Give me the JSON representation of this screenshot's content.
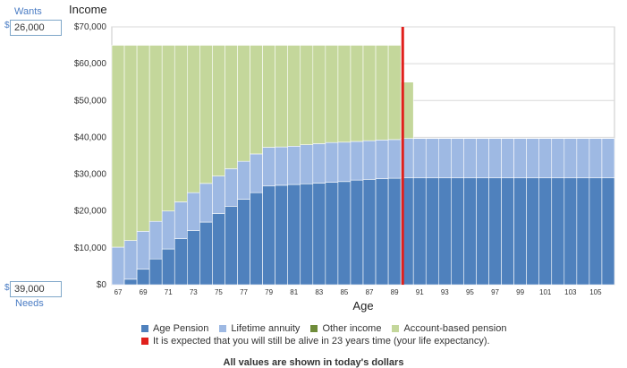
{
  "controls": {
    "wants_label": "Wants",
    "wants_value": "26,000",
    "needs_label": "Needs",
    "needs_value": "39,000",
    "currency_symbol": "$"
  },
  "legend": {
    "items": [
      {
        "label": "Age Pension",
        "color": "#4f81bd"
      },
      {
        "label": "Lifetime annuity",
        "color": "#9eb9e3"
      },
      {
        "label": "Other income",
        "color": "#6f8c3a"
      },
      {
        "label": "Account-based pension",
        "color": "#c4d79b"
      }
    ],
    "life_expectancy_label": "It is expected that you will still be alive in 23 years time (your life expectancy).",
    "life_expectancy_color": "#e0201c"
  },
  "footnote": "All values are shown in today's dollars",
  "chart_data": {
    "type": "bar",
    "stacked": true,
    "title": "Income",
    "xlabel": "Age",
    "ylabel": "",
    "ylim": [
      0,
      70000
    ],
    "yticks": [
      0,
      10000,
      20000,
      30000,
      40000,
      50000,
      60000,
      70000
    ],
    "ytick_labels": [
      "$0",
      "$10,000",
      "$20,000",
      "$30,000",
      "$40,000",
      "$50,000",
      "$60,000",
      "$70,000"
    ],
    "xtick_labels": [
      "67",
      "69",
      "71",
      "73",
      "75",
      "77",
      "79",
      "81",
      "83",
      "85",
      "87",
      "89",
      "91",
      "93",
      "95",
      "97",
      "99",
      "101",
      "103",
      "105"
    ],
    "categories": [
      67,
      68,
      69,
      70,
      71,
      72,
      73,
      74,
      75,
      76,
      77,
      78,
      79,
      80,
      81,
      82,
      83,
      84,
      85,
      86,
      87,
      88,
      89,
      90,
      91,
      92,
      93,
      94,
      95,
      96,
      97,
      98,
      99,
      100,
      101,
      102,
      103,
      104,
      105,
      106
    ],
    "series": [
      {
        "name": "Age Pension",
        "color": "#4f81bd",
        "values": [
          0,
          1500,
          4200,
          7000,
          9700,
          12500,
          14700,
          17000,
          19300,
          21300,
          23200,
          25000,
          26800,
          27000,
          27200,
          27400,
          27600,
          27800,
          28000,
          28400,
          28600,
          28800,
          28900,
          29000,
          29000,
          29000,
          29000,
          29000,
          29000,
          29000,
          29000,
          29000,
          29000,
          29000,
          29000,
          29000,
          29000,
          29000,
          29000,
          29000
        ]
      },
      {
        "name": "Lifetime annuity",
        "color": "#9eb9e3",
        "values": [
          10200,
          10500,
          10300,
          10200,
          10300,
          10000,
          10300,
          10500,
          10200,
          10200,
          10300,
          10500,
          10500,
          10400,
          10400,
          10600,
          10700,
          10800,
          10700,
          10500,
          10500,
          10500,
          10500,
          10700,
          10700,
          10700,
          10700,
          10700,
          10700,
          10700,
          10700,
          10700,
          10700,
          10700,
          10700,
          10700,
          10700,
          10700,
          10700,
          10700
        ]
      },
      {
        "name": "Other income",
        "color": "#6f8c3a",
        "values": [
          0,
          0,
          0,
          0,
          0,
          0,
          0,
          0,
          0,
          0,
          0,
          0,
          0,
          0,
          0,
          0,
          0,
          0,
          0,
          0,
          0,
          0,
          0,
          0,
          0,
          0,
          0,
          0,
          0,
          0,
          0,
          0,
          0,
          0,
          0,
          0,
          0,
          0,
          0,
          0
        ]
      },
      {
        "name": "Account-based pension",
        "color": "#c4d79b",
        "values": [
          54800,
          53000,
          50500,
          47800,
          45000,
          42500,
          40000,
          37500,
          35500,
          33500,
          31500,
          29500,
          27700,
          27600,
          27400,
          27000,
          26700,
          26400,
          26300,
          26100,
          25900,
          25700,
          25600,
          15300,
          0,
          0,
          0,
          0,
          0,
          0,
          0,
          0,
          0,
          0,
          0,
          0,
          0,
          0,
          0,
          0
        ]
      }
    ],
    "life_expectancy_age": 90,
    "grid": "horizontal"
  }
}
